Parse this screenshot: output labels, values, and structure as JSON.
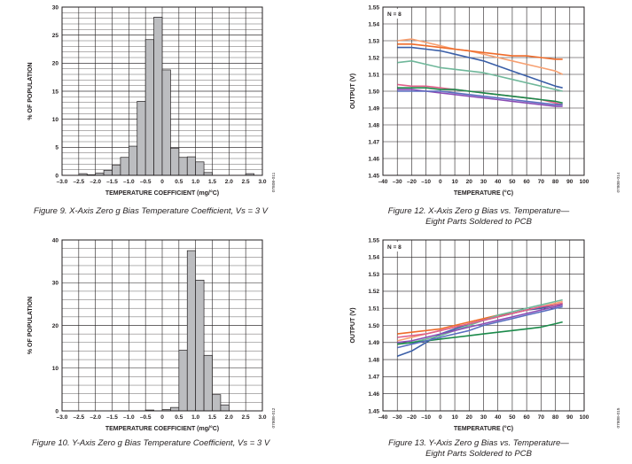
{
  "chart_data": [
    {
      "type": "bar",
      "caption": "Figure 9. X-Axis Zero g Bias Temperature Coefficient, Vs = 3 V",
      "xlabel": "TEMPERATURE COEFFICIENT (mg/°C)",
      "ylabel": "% OF POPULATION",
      "code": "07808-011",
      "xlim": [
        -3.0,
        3.0
      ],
      "ylim": [
        0,
        30
      ],
      "xticks": [
        "–3.0",
        "–2.5",
        "–2.0",
        "–1.5",
        "–1.0",
        "–0.5",
        "0",
        "0.5",
        "1.0",
        "1.5",
        "2.0",
        "2.5",
        "3.0"
      ],
      "yticks": [
        "0",
        "5",
        "10",
        "15",
        "20",
        "25",
        "30"
      ],
      "bin_width": 0.25,
      "bins": [
        -2.5,
        -2.25,
        -2.0,
        -1.75,
        -1.5,
        -1.25,
        -1.0,
        -0.75,
        -0.5,
        -0.25,
        0,
        0.25,
        0.5,
        0.75,
        1.0,
        1.25,
        2.5
      ],
      "values": [
        0.3,
        0.1,
        0.4,
        0.9,
        1.8,
        3.2,
        5.2,
        13.2,
        24.2,
        28.2,
        18.8,
        4.8,
        3.2,
        3.3,
        2.4,
        0.5,
        0.3
      ],
      "grid": true
    },
    {
      "type": "bar",
      "caption": "Figure 10. Y-Axis Zero g Bias Temperature Coefficient, Vs = 3 V",
      "xlabel": "TEMPERATURE COEFFICIENT (mg/°C)",
      "ylabel": "% OF POPULATION",
      "code": "07808-012",
      "xlim": [
        -3.0,
        3.0
      ],
      "ylim": [
        0,
        40
      ],
      "xticks": [
        "–3.0",
        "–2.5",
        "–2.0",
        "–1.5",
        "–1.0",
        "–0.5",
        "0",
        "0.5",
        "1.0",
        "1.5",
        "2.0",
        "2.5",
        "3.0"
      ],
      "yticks": [
        "0",
        "10",
        "20",
        "30",
        "40"
      ],
      "bin_width": 0.25,
      "bins": [
        -0.5,
        0,
        0.25,
        0.5,
        0.75,
        1.0,
        1.25,
        1.5,
        1.75
      ],
      "values": [
        0.2,
        0.3,
        0.8,
        14.2,
        37.5,
        30.6,
        13.0,
        3.8,
        1.4
      ],
      "grid": true
    },
    {
      "type": "line",
      "caption_lines": [
        "Figure 12. X-Axis Zero g Bias vs. Temperature—",
        "Eight Parts Soldered to PCB"
      ],
      "xlabel": "TEMPERATURE (°C)",
      "ylabel": "OUTPUT (V)",
      "code": "07808-014",
      "annotation": "N = 8",
      "xlim": [
        -40,
        100
      ],
      "ylim": [
        1.45,
        1.55
      ],
      "xticks": [
        "–40",
        "–30",
        "–20",
        "–10",
        "0",
        "10",
        "20",
        "30",
        "40",
        "50",
        "60",
        "70",
        "80",
        "90",
        "100"
      ],
      "yticks": [
        "1.45",
        "1.46",
        "1.47",
        "1.48",
        "1.49",
        "1.50",
        "1.51",
        "1.52",
        "1.53",
        "1.54",
        "1.55"
      ],
      "x": [
        -30,
        -20,
        -10,
        0,
        10,
        20,
        30,
        40,
        50,
        60,
        70,
        80,
        85
      ],
      "series": [
        {
          "color": "#f7a071",
          "values": [
            1.53,
            1.531,
            1.529,
            1.527,
            1.525,
            1.524,
            1.522,
            1.52,
            1.518,
            1.516,
            1.514,
            1.512,
            1.51
          ]
        },
        {
          "color": "#ef6b2a",
          "values": [
            1.528,
            1.528,
            1.527,
            1.526,
            1.525,
            1.524,
            1.523,
            1.522,
            1.521,
            1.521,
            1.52,
            1.519,
            1.519
          ]
        },
        {
          "color": "#3b5fa8",
          "values": [
            1.526,
            1.526,
            1.525,
            1.524,
            1.522,
            1.52,
            1.518,
            1.515,
            1.512,
            1.509,
            1.506,
            1.503,
            1.502
          ]
        },
        {
          "color": "#6fb79a",
          "values": [
            1.517,
            1.518,
            1.516,
            1.514,
            1.513,
            1.512,
            1.511,
            1.509,
            1.507,
            1.505,
            1.503,
            1.501,
            1.5
          ]
        },
        {
          "color": "#e0608a",
          "values": [
            1.504,
            1.503,
            1.503,
            1.502,
            1.501,
            1.5,
            1.499,
            1.498,
            1.497,
            1.496,
            1.495,
            1.493,
            1.492
          ]
        },
        {
          "color": "#1b8a4a",
          "values": [
            1.502,
            1.502,
            1.502,
            1.501,
            1.501,
            1.5,
            1.499,
            1.498,
            1.497,
            1.496,
            1.495,
            1.494,
            1.493
          ]
        },
        {
          "color": "#8a4db5",
          "values": [
            1.501,
            1.501,
            1.5,
            1.499,
            1.498,
            1.497,
            1.496,
            1.495,
            1.494,
            1.493,
            1.492,
            1.491,
            1.491
          ]
        },
        {
          "color": "#5a6fc0",
          "values": [
            1.5,
            1.5,
            1.5,
            1.5,
            1.499,
            1.498,
            1.497,
            1.496,
            1.495,
            1.494,
            1.493,
            1.492,
            1.492
          ]
        }
      ],
      "grid": true
    },
    {
      "type": "line",
      "caption_lines": [
        "Figure 13. Y-Axis Zero g Bias vs. Temperature—",
        "Eight Parts Soldered to PCB"
      ],
      "xlabel": "TEMPERATURE (°C)",
      "ylabel": "OUTPUT (V)",
      "code": "07808-015",
      "annotation": "N = 8",
      "xlim": [
        -40,
        100
      ],
      "ylim": [
        1.45,
        1.55
      ],
      "xticks": [
        "–40",
        "–30",
        "–20",
        "–10",
        "0",
        "10",
        "20",
        "30",
        "40",
        "50",
        "60",
        "70",
        "80",
        "90",
        "100"
      ],
      "yticks": [
        "1.45",
        "1.46",
        "1.47",
        "1.48",
        "1.49",
        "1.50",
        "1.51",
        "1.52",
        "1.53",
        "1.54",
        "1.55"
      ],
      "x": [
        -30,
        -20,
        -10,
        0,
        10,
        20,
        30,
        40,
        50,
        60,
        70,
        80,
        85
      ],
      "series": [
        {
          "color": "#f7a071",
          "values": [
            1.491,
            1.493,
            1.495,
            1.497,
            1.499,
            1.501,
            1.503,
            1.505,
            1.507,
            1.509,
            1.511,
            1.513,
            1.514
          ]
        },
        {
          "color": "#ef6b2a",
          "values": [
            1.495,
            1.496,
            1.497,
            1.498,
            1.5,
            1.502,
            1.504,
            1.506,
            1.507,
            1.509,
            1.51,
            1.512,
            1.513
          ]
        },
        {
          "color": "#3b5fa8",
          "values": [
            1.482,
            1.485,
            1.49,
            1.495,
            1.498,
            1.501,
            1.503,
            1.505,
            1.507,
            1.509,
            1.51,
            1.512,
            1.512
          ]
        },
        {
          "color": "#6fb79a",
          "values": [
            1.489,
            1.49,
            1.492,
            1.494,
            1.497,
            1.5,
            1.503,
            1.506,
            1.508,
            1.51,
            1.512,
            1.514,
            1.515
          ]
        },
        {
          "color": "#e0608a",
          "values": [
            1.493,
            1.494,
            1.495,
            1.497,
            1.499,
            1.501,
            1.503,
            1.505,
            1.507,
            1.509,
            1.511,
            1.512,
            1.513
          ]
        },
        {
          "color": "#1b8a4a",
          "values": [
            1.489,
            1.49,
            1.491,
            1.492,
            1.493,
            1.494,
            1.495,
            1.496,
            1.497,
            1.498,
            1.499,
            1.501,
            1.502
          ]
        },
        {
          "color": "#8a4db5",
          "values": [
            1.49,
            1.491,
            1.493,
            1.495,
            1.497,
            1.499,
            1.501,
            1.503,
            1.505,
            1.507,
            1.509,
            1.511,
            1.512
          ]
        },
        {
          "color": "#5a6fc0",
          "values": [
            1.487,
            1.489,
            1.491,
            1.493,
            1.495,
            1.497,
            1.5,
            1.502,
            1.504,
            1.506,
            1.508,
            1.51,
            1.511
          ]
        }
      ],
      "grid": true
    }
  ]
}
